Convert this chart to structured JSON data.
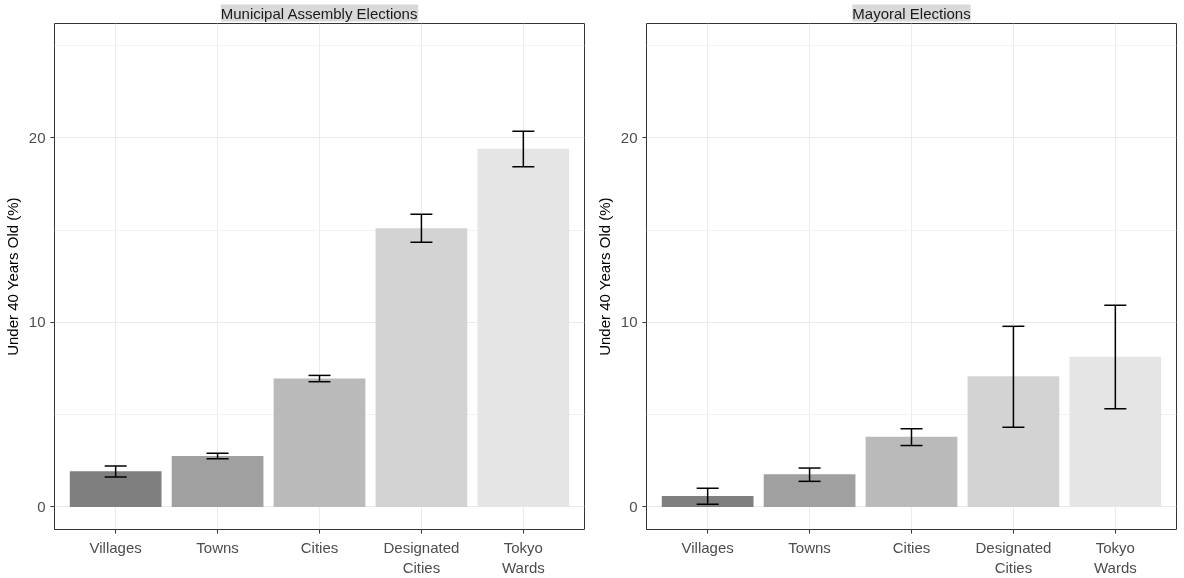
{
  "chart_data": [
    {
      "type": "bar",
      "title": "Municipal Assembly Elections",
      "ylabel": "Under 40 Years Old (%)",
      "categories": [
        "Villages",
        "Towns",
        "Cities",
        "Designated\nCities",
        "Tokyo\nWards"
      ],
      "values": [
        1.94,
        2.76,
        6.96,
        15.1,
        19.41
      ],
      "errors": [
        [
          1.62,
          2.22
        ],
        [
          2.62,
          2.91
        ],
        [
          6.79,
          7.13
        ],
        [
          14.35,
          15.86
        ],
        [
          18.44,
          20.36
        ]
      ],
      "colors": [
        "#7f7f7f",
        "#a0a0a0",
        "#bababa",
        "#d3d3d3",
        "#e5e5e5"
      ],
      "ylim": [
        -1.22,
        26.2
      ],
      "yticks": [
        0,
        10,
        20
      ],
      "grid": true
    },
    {
      "type": "bar",
      "title": "Mayoral Elections",
      "ylabel": "Under 40 Years Old (%)",
      "categories": [
        "Villages",
        "Towns",
        "Cities",
        "Designated\nCities",
        "Tokyo\nWards"
      ],
      "values": [
        0.59,
        1.77,
        3.8,
        7.09,
        8.14
      ],
      "errors": [
        [
          0.15,
          1.01
        ],
        [
          1.39,
          2.11
        ],
        [
          3.33,
          4.24
        ],
        [
          4.32,
          9.79
        ],
        [
          5.32,
          10.93
        ]
      ],
      "colors": [
        "#7f7f7f",
        "#a0a0a0",
        "#bababa",
        "#d3d3d3",
        "#e5e5e5"
      ],
      "ylim": [
        -1.22,
        26.2
      ],
      "yticks": [
        0,
        10,
        20
      ],
      "grid": true
    }
  ]
}
